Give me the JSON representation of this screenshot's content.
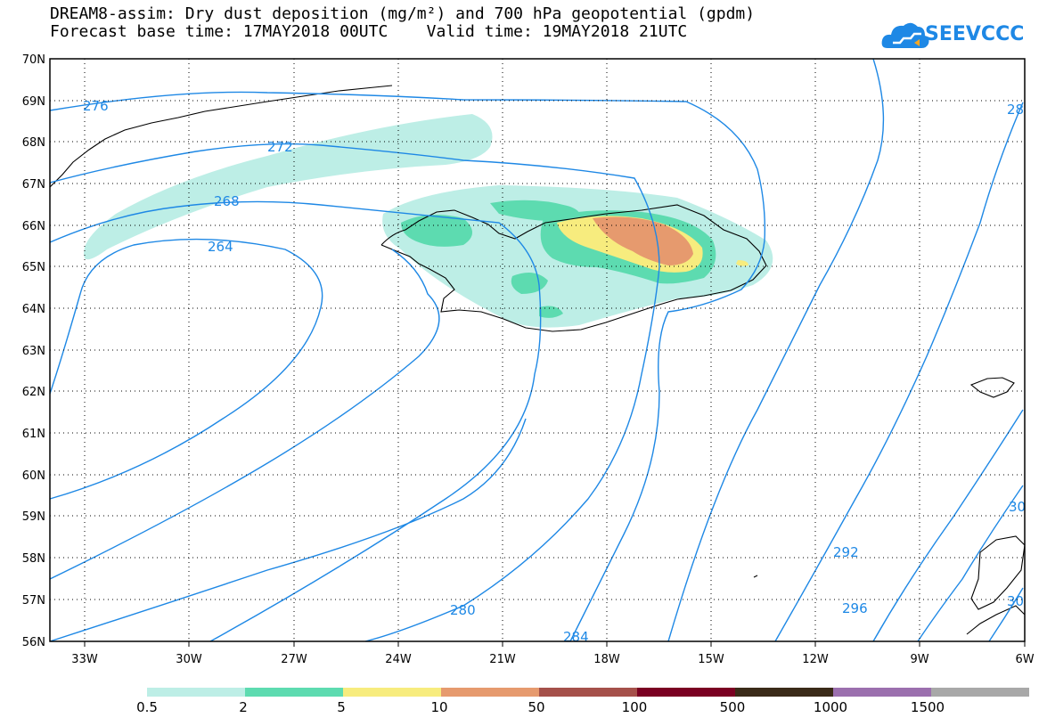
{
  "title": {
    "line1": "DREAM8-assim: Dry dust deposition (mg/m²) and 700 hPa geopotential (gpdm)",
    "line2": "Forecast base time: 17MAY2018 00UTC    Valid time: 19MAY2018 21UTC"
  },
  "logo": {
    "text": "SEEVCCC",
    "icon": "cloud-icon"
  },
  "map": {
    "lat_labels": [
      "70N",
      "69N",
      "68N",
      "67N",
      "66N",
      "65N",
      "64N",
      "63N",
      "62N",
      "61N",
      "60N",
      "59N",
      "58N",
      "57N",
      "56N"
    ],
    "lon_labels": [
      "33W",
      "30W",
      "27W",
      "24W",
      "21W",
      "18W",
      "15W",
      "12W",
      "9W",
      "6W"
    ],
    "contour_labels": [
      "276",
      "272",
      "268",
      "264",
      "280",
      "284",
      "292",
      "296",
      "28",
      "30",
      "30"
    ],
    "colors": {
      "contour": "#1e88e5",
      "coast": "#000000"
    }
  },
  "legend": {
    "labels": [
      "0.5",
      "2",
      "5",
      "10",
      "50",
      "100",
      "500",
      "1000",
      "1500"
    ],
    "colors": [
      "#bdeee6",
      "#5ddbb0",
      "#f7ec7e",
      "#e69a6e",
      "#a5504a",
      "#7a0022",
      "#3a2a18",
      "#9b6fae",
      "#a8a8a8"
    ]
  }
}
